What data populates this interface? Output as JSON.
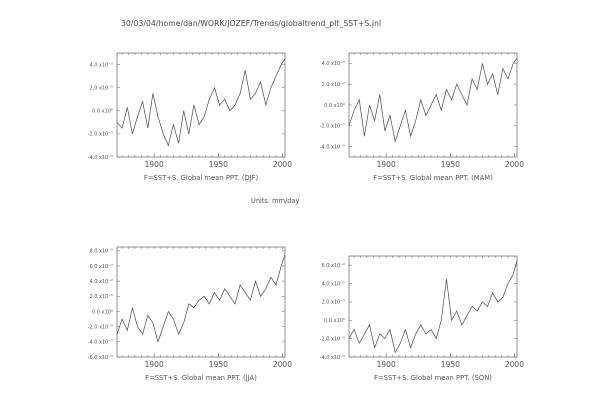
{
  "header": {
    "path": "30/03/04/home/dan/WORK/JOZEF/Trends/globaltrend_plt_SST+S.jnl"
  },
  "units": "Units: mm/day",
  "chart_data": [
    {
      "type": "line",
      "title": "",
      "xlabel": "F=SST+S. Global mean PPT. (DJF)",
      "ylabel": "",
      "xlim": [
        1871,
        2002
      ],
      "ylim": [
        -0.04,
        0.05
      ],
      "xticks": [
        "1900",
        "1950",
        "2000"
      ],
      "xtick_values": [
        1900,
        1950,
        2000
      ],
      "yticks": [
        "-4.0 x10⁻²",
        "-2.0 x10⁻²",
        "0.0 x10⁰",
        "2.0 x10⁻²",
        "4.0 x10⁻²"
      ],
      "ytick_values": [
        -0.04,
        -0.02,
        0.0,
        0.02,
        0.04
      ],
      "series": [
        {
          "x": [
            1871,
            1875,
            1879,
            1883,
            1887,
            1891,
            1895,
            1899,
            1903,
            1907,
            1911,
            1915,
            1919,
            1923,
            1927,
            1931,
            1935,
            1939,
            1943,
            1947,
            1951,
            1955,
            1959,
            1963,
            1967,
            1971,
            1975,
            1979,
            1983,
            1987,
            1991,
            1995,
            1999,
            2002
          ],
          "values": [
            -0.01,
            -0.015,
            0.003,
            -0.02,
            -0.005,
            0.008,
            -0.015,
            0.015,
            -0.005,
            -0.02,
            -0.03,
            -0.012,
            -0.028,
            0.0,
            -0.02,
            0.005,
            -0.012,
            -0.005,
            0.01,
            0.02,
            0.005,
            0.01,
            0.0,
            0.005,
            0.015,
            0.035,
            0.01,
            0.015,
            0.025,
            0.005,
            0.02,
            0.03,
            0.04,
            0.045
          ]
        }
      ]
    },
    {
      "type": "line",
      "title": "",
      "xlabel": "F=SST+S. Global mean PPT. (MAM)",
      "ylabel": "",
      "xlim": [
        1871,
        2002
      ],
      "ylim": [
        -0.05,
        0.05
      ],
      "xticks": [
        "1900",
        "1950",
        "2000"
      ],
      "xtick_values": [
        1900,
        1950,
        2000
      ],
      "yticks": [
        "-4.0 x10⁻²",
        "-2.0 x10⁻²",
        "0.0 x10⁰",
        "2.0 x10⁻²",
        "4.0 x10⁻²"
      ],
      "ytick_values": [
        -0.04,
        -0.02,
        0.0,
        0.02,
        0.04
      ],
      "series": [
        {
          "x": [
            1871,
            1875,
            1879,
            1883,
            1887,
            1891,
            1895,
            1899,
            1903,
            1907,
            1911,
            1915,
            1919,
            1923,
            1927,
            1931,
            1935,
            1939,
            1943,
            1947,
            1951,
            1955,
            1959,
            1963,
            1967,
            1971,
            1975,
            1979,
            1983,
            1987,
            1991,
            1995,
            1999,
            2002
          ],
          "values": [
            -0.02,
            -0.005,
            0.005,
            -0.03,
            0.0,
            -0.015,
            0.01,
            -0.025,
            -0.01,
            -0.035,
            -0.02,
            -0.005,
            -0.03,
            -0.015,
            0.005,
            -0.01,
            0.0,
            0.01,
            -0.005,
            0.015,
            0.005,
            0.02,
            0.01,
            0.0,
            0.025,
            0.015,
            0.04,
            0.02,
            0.03,
            0.01,
            0.035,
            0.025,
            0.04,
            0.045
          ]
        }
      ]
    },
    {
      "type": "line",
      "title": "",
      "xlabel": "F=SST+S. Global mean PPT. (JJA)",
      "ylabel": "",
      "xlim": [
        1871,
        2002
      ],
      "ylim": [
        -0.06,
        0.085
      ],
      "xticks": [
        "1900",
        "1950",
        "2000"
      ],
      "xtick_values": [
        1900,
        1950,
        2000
      ],
      "yticks": [
        "-6.0 x10⁻²",
        "-4.0 x10⁻²",
        "-2.0 x10⁻²",
        "0.0 x10⁰",
        "2.0 x10⁻²",
        "4.0 x10⁻²",
        "6.0 x10⁻²",
        "8.0 x10⁻²"
      ],
      "ytick_values": [
        -0.06,
        -0.04,
        -0.02,
        0.0,
        0.02,
        0.04,
        0.06,
        0.08
      ],
      "series": [
        {
          "x": [
            1871,
            1875,
            1879,
            1883,
            1887,
            1891,
            1895,
            1899,
            1903,
            1907,
            1911,
            1915,
            1919,
            1923,
            1927,
            1931,
            1935,
            1939,
            1943,
            1947,
            1951,
            1955,
            1959,
            1963,
            1967,
            1971,
            1975,
            1979,
            1983,
            1987,
            1991,
            1995,
            1999,
            2002
          ],
          "values": [
            -0.03,
            -0.01,
            -0.025,
            0.005,
            -0.02,
            -0.03,
            -0.005,
            -0.015,
            -0.04,
            -0.02,
            0.0,
            -0.01,
            -0.03,
            -0.015,
            0.01,
            0.005,
            0.015,
            0.02,
            0.01,
            0.025,
            0.015,
            0.03,
            0.02,
            0.01,
            0.035,
            0.025,
            0.015,
            0.04,
            0.02,
            0.03,
            0.045,
            0.035,
            0.06,
            0.075
          ]
        }
      ]
    },
    {
      "type": "line",
      "title": "",
      "xlabel": "F=SST+S. Global mean PPT. (SON)",
      "ylabel": "",
      "xlim": [
        1871,
        2002
      ],
      "ylim": [
        -0.04,
        0.07
      ],
      "xticks": [
        "1900",
        "1950",
        "2000"
      ],
      "xtick_values": [
        1900,
        1950,
        2000
      ],
      "yticks": [
        "-4.0 x10⁻²",
        "-2.0 x10⁻²",
        "0.0 x10⁰",
        "2.0 x10⁻²",
        "4.0 x10⁻²",
        "6.0 x10⁻²"
      ],
      "ytick_values": [
        -0.04,
        -0.02,
        0.0,
        0.02,
        0.04,
        0.06
      ],
      "series": [
        {
          "x": [
            1871,
            1875,
            1879,
            1883,
            1887,
            1891,
            1895,
            1899,
            1903,
            1907,
            1911,
            1915,
            1919,
            1923,
            1927,
            1931,
            1935,
            1939,
            1943,
            1947,
            1951,
            1955,
            1959,
            1963,
            1967,
            1971,
            1975,
            1979,
            1983,
            1987,
            1991,
            1995,
            1999,
            2002
          ],
          "values": [
            -0.02,
            -0.01,
            -0.025,
            -0.015,
            -0.005,
            -0.03,
            -0.015,
            -0.02,
            -0.01,
            -0.035,
            -0.025,
            -0.01,
            -0.03,
            -0.015,
            -0.005,
            -0.015,
            -0.01,
            -0.02,
            0.0,
            0.045,
            0.0,
            0.01,
            -0.005,
            0.005,
            0.015,
            0.01,
            0.02,
            0.015,
            0.03,
            0.02,
            0.025,
            0.04,
            0.05,
            0.065
          ]
        }
      ]
    }
  ]
}
